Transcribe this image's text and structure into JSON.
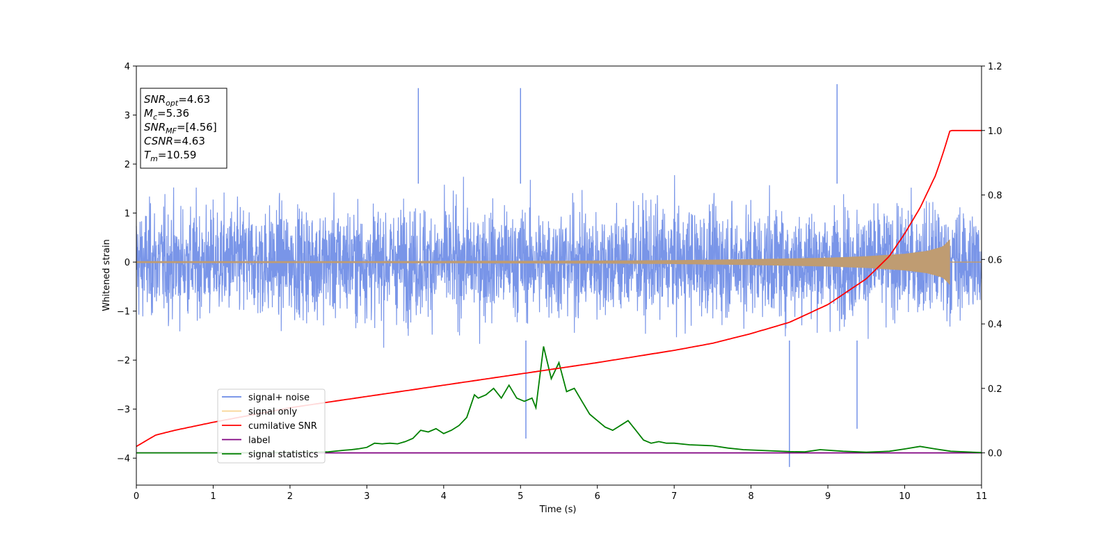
{
  "chart_data": {
    "type": "line",
    "xlabel": "Time (s)",
    "ylabel": "Whitened strain",
    "xlim": [
      0,
      11
    ],
    "ylim": [
      -4.55,
      4
    ],
    "y2lim": [
      -0.1,
      1.2
    ],
    "x_ticks": [
      0,
      1,
      2,
      3,
      4,
      5,
      6,
      7,
      8,
      9,
      10,
      11
    ],
    "y_ticks": [
      -4,
      -3,
      -2,
      -1,
      0,
      1,
      2,
      3,
      4
    ],
    "y2_ticks": [
      "0.0",
      "0.2",
      "0.4",
      "0.6",
      "0.8",
      "1.0",
      "1.2"
    ],
    "y2_tick_values": [
      0.0,
      0.2,
      0.4,
      0.6,
      0.8,
      1.0,
      1.2
    ],
    "legend_position": "lower-left",
    "grid": false,
    "series": [
      {
        "name": "signal+ noise",
        "axis": "left",
        "color": "#6a8ae6",
        "style": "dense noise, roughly gaussian with std ≈ 0.8, spikes to about 3.6 and -4.2",
        "peaks": [
          {
            "x": 9.12,
            "y": 3.63
          },
          {
            "x": 3.67,
            "y": 3.55
          },
          {
            "x": 5.0,
            "y": 3.55
          },
          {
            "x": 8.5,
            "y": -4.18
          },
          {
            "x": 5.07,
            "y": -3.6
          },
          {
            "x": 9.38,
            "y": -3.4
          }
        ]
      },
      {
        "name": "signal only",
        "axis": "left",
        "color": "#f5b94a",
        "envelope": {
          "x": [
            0,
            3,
            6,
            7,
            8,
            9,
            9.5,
            10,
            10.3,
            10.5,
            10.59
          ],
          "amplitude": [
            0.02,
            0.02,
            0.03,
            0.04,
            0.06,
            0.09,
            0.12,
            0.17,
            0.23,
            0.32,
            0.47
          ]
        },
        "end_x": 10.59
      },
      {
        "name": "cumilative SNR",
        "axis": "right",
        "color": "#ff0000",
        "x": [
          0,
          0.25,
          0.5,
          1,
          2,
          3,
          4,
          5,
          6,
          7,
          7.5,
          8,
          8.5,
          9,
          9.5,
          9.8,
          10,
          10.2,
          10.4,
          10.5,
          10.59,
          11
        ],
        "values": [
          0.02,
          0.055,
          0.07,
          0.095,
          0.14,
          0.175,
          0.21,
          0.245,
          0.28,
          0.318,
          0.34,
          0.37,
          0.405,
          0.46,
          0.54,
          0.61,
          0.68,
          0.76,
          0.86,
          0.93,
          1.0,
          1.0
        ]
      },
      {
        "name": "label",
        "axis": "right",
        "color": "#800080",
        "x": [
          0,
          11
        ],
        "values": [
          0,
          0
        ]
      },
      {
        "name": "signal statistics",
        "axis": "right",
        "color": "#008000",
        "x": [
          0,
          1,
          2,
          2.5,
          2.7,
          2.8,
          2.9,
          3.0,
          3.1,
          3.2,
          3.3,
          3.4,
          3.5,
          3.6,
          3.7,
          3.8,
          3.9,
          4.0,
          4.1,
          4.2,
          4.3,
          4.4,
          4.45,
          4.55,
          4.65,
          4.75,
          4.85,
          4.95,
          5.05,
          5.15,
          5.2,
          5.3,
          5.4,
          5.5,
          5.6,
          5.7,
          5.8,
          5.9,
          6.0,
          6.1,
          6.2,
          6.3,
          6.4,
          6.5,
          6.6,
          6.7,
          6.8,
          6.9,
          7.0,
          7.2,
          7.5,
          7.7,
          7.9,
          8.2,
          8.5,
          8.7,
          8.9,
          9.2,
          9.5,
          9.8,
          10.0,
          10.2,
          10.4,
          10.6,
          11.0
        ],
        "values": [
          0.0,
          0.0,
          0.001,
          0.003,
          0.008,
          0.01,
          0.013,
          0.017,
          0.03,
          0.028,
          0.03,
          0.028,
          0.035,
          0.045,
          0.07,
          0.065,
          0.075,
          0.06,
          0.07,
          0.085,
          0.11,
          0.18,
          0.17,
          0.18,
          0.2,
          0.17,
          0.21,
          0.17,
          0.16,
          0.17,
          0.14,
          0.33,
          0.23,
          0.28,
          0.19,
          0.2,
          0.16,
          0.12,
          0.1,
          0.08,
          0.07,
          0.085,
          0.1,
          0.07,
          0.04,
          0.03,
          0.035,
          0.03,
          0.03,
          0.025,
          0.022,
          0.015,
          0.01,
          0.007,
          0.004,
          0.003,
          0.01,
          0.005,
          0.002,
          0.005,
          0.012,
          0.02,
          0.012,
          0.005,
          0.001
        ]
      }
    ],
    "annotation_lines": [
      {
        "parts": [
          {
            "t": "SNR",
            "i": true
          },
          {
            "t": "opt",
            "i": true,
            "sub": true
          },
          {
            "t": "=4.63"
          }
        ]
      },
      {
        "parts": [
          {
            "t": "M",
            "i": true
          },
          {
            "t": "c",
            "i": true,
            "sub": true
          },
          {
            "t": "=5.36"
          }
        ]
      },
      {
        "parts": [
          {
            "t": "SNR",
            "i": true
          },
          {
            "t": "MF",
            "i": true,
            "sub": true
          },
          {
            "t": "=[4.56]"
          }
        ]
      },
      {
        "parts": [
          {
            "t": "CSNR",
            "i": true
          },
          {
            "t": "=4.63"
          }
        ]
      },
      {
        "parts": [
          {
            "t": "T",
            "i": true
          },
          {
            "t": "m",
            "i": true,
            "sub": true
          },
          {
            "t": "=10.59"
          }
        ]
      }
    ]
  }
}
